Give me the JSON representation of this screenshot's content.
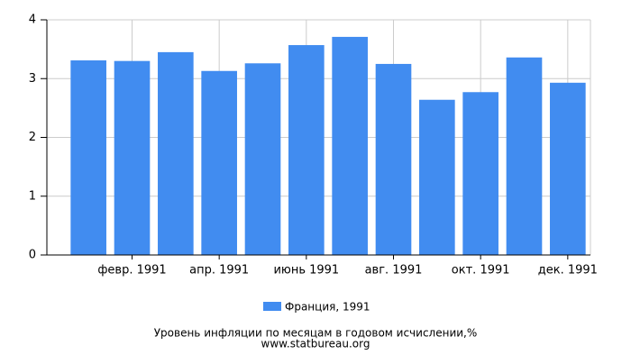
{
  "chart_data": {
    "type": "bar",
    "categories": [
      null,
      "февр. 1991",
      null,
      "апр. 1991",
      null,
      "июнь 1991",
      null,
      "авг. 1991",
      null,
      "окт. 1991",
      null,
      "дек. 1991"
    ],
    "series": [
      {
        "name": "Франция, 1991",
        "color": "#418cf0",
        "values": [
          3.31,
          3.3,
          3.45,
          3.13,
          3.26,
          3.57,
          3.71,
          3.25,
          2.64,
          2.77,
          3.36,
          2.93
        ]
      }
    ],
    "ylim": [
      0,
      4
    ],
    "yticks": [
      0,
      1,
      2,
      3,
      4
    ],
    "grid": true,
    "caption": "Уровень инфляции по месяцам в годовом исчислении,%",
    "source": "www.statbureau.org"
  }
}
